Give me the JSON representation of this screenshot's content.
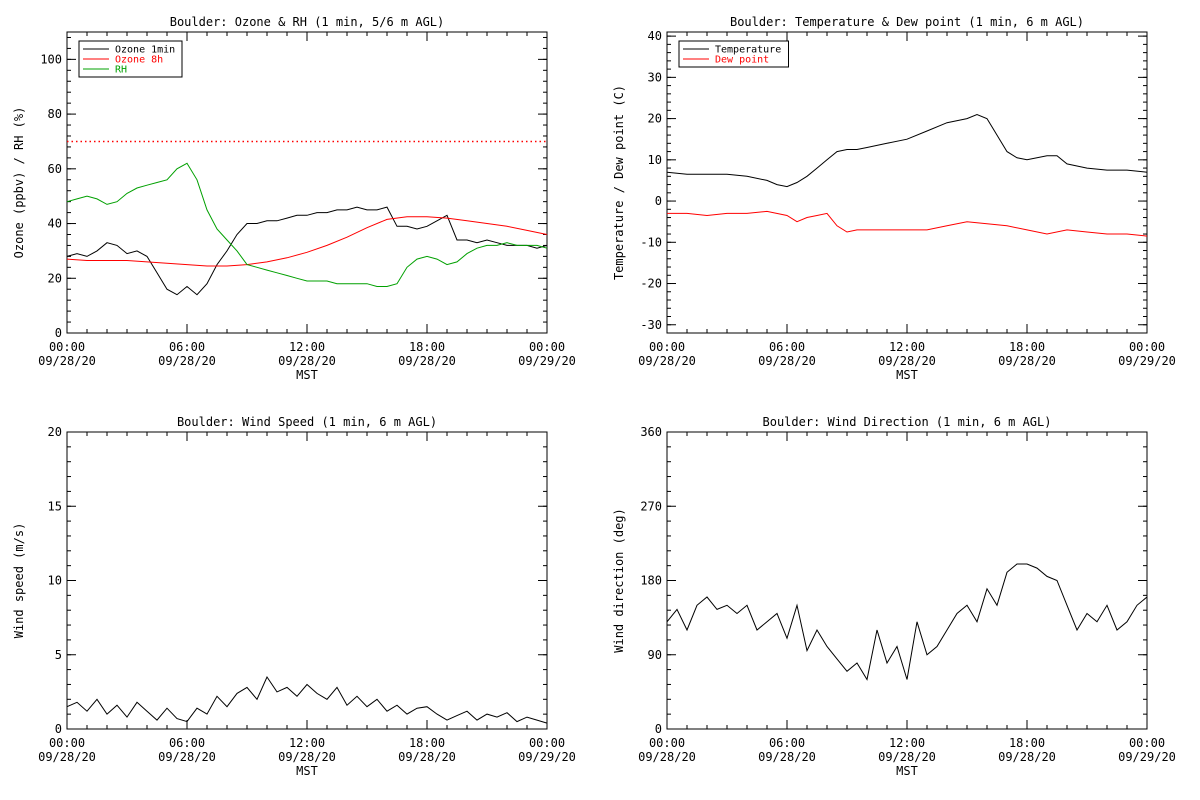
{
  "x_axis": {
    "xlabel": "MST",
    "tick_times": [
      "00:00",
      "06:00",
      "12:00",
      "18:00",
      "00:00"
    ],
    "tick_dates": [
      "09/28/20",
      "09/28/20",
      "09/28/20",
      "09/28/20",
      "09/29/20"
    ],
    "hours": [
      0,
      6,
      12,
      18,
      24
    ]
  },
  "chart_data": [
    {
      "type": "line",
      "title": "Boulder: Ozone & RH (1 min, 5/6 m AGL)",
      "ylabel": "Ozone (ppbv) / RH (%)",
      "xlabel": "MST",
      "xlim": [
        0,
        24
      ],
      "ylim": [
        0,
        110
      ],
      "yticks": [
        0,
        20,
        40,
        60,
        80,
        100
      ],
      "legend_position": "top-left",
      "reference_line": {
        "y": 70,
        "color": "#ff0000",
        "style": "dotted"
      },
      "series": [
        {
          "name": "Ozone 1min",
          "color": "#000000",
          "x": [
            0,
            0.5,
            1,
            1.5,
            2,
            2.5,
            3,
            3.5,
            4,
            4.5,
            5,
            5.5,
            6,
            6.5,
            7,
            7.5,
            8,
            8.5,
            9,
            9.5,
            10,
            10.5,
            11,
            11.5,
            12,
            12.5,
            13,
            13.5,
            14,
            14.5,
            15,
            15.5,
            16,
            16.5,
            17,
            17.5,
            18,
            18.5,
            19,
            19.5,
            20,
            20.5,
            21,
            21.5,
            22,
            22.5,
            23,
            23.5,
            24
          ],
          "y": [
            28,
            29,
            28,
            30,
            33,
            32,
            29,
            30,
            28,
            22,
            16,
            14,
            17,
            14,
            18,
            25,
            30,
            36,
            40,
            40,
            41,
            41,
            42,
            43,
            43,
            44,
            44,
            45,
            45,
            46,
            45,
            45,
            46,
            39,
            39,
            38,
            39,
            41,
            43,
            34,
            34,
            33,
            34,
            33,
            32,
            32,
            32,
            31,
            32
          ]
        },
        {
          "name": "Ozone 8h",
          "color": "#ff0000",
          "x": [
            0,
            1,
            2,
            3,
            4,
            5,
            6,
            7,
            8,
            9,
            10,
            11,
            12,
            13,
            14,
            15,
            16,
            17,
            18,
            19,
            20,
            21,
            22,
            23,
            24
          ],
          "y": [
            27,
            26.5,
            26.5,
            26.5,
            26,
            25.5,
            25,
            24.5,
            24.5,
            25,
            26,
            27.5,
            29.5,
            32,
            35,
            38.5,
            41.5,
            42.5,
            42.5,
            42,
            41,
            40,
            39,
            37.5,
            36
          ]
        },
        {
          "name": "RH",
          "color": "#00a000",
          "x": [
            0,
            0.5,
            1,
            1.5,
            2,
            2.5,
            3,
            3.5,
            4,
            4.5,
            5,
            5.5,
            6,
            6.5,
            7,
            7.5,
            8,
            8.5,
            9,
            9.5,
            10,
            10.5,
            11,
            11.5,
            12,
            12.5,
            13,
            13.5,
            14,
            14.5,
            15,
            15.5,
            16,
            16.5,
            17,
            17.5,
            18,
            18.5,
            19,
            19.5,
            20,
            20.5,
            21,
            21.5,
            22,
            22.5,
            23,
            23.5,
            24
          ],
          "y": [
            48,
            49,
            50,
            49,
            47,
            48,
            51,
            53,
            54,
            55,
            56,
            60,
            62,
            56,
            45,
            38,
            34,
            30,
            25,
            24,
            23,
            22,
            21,
            20,
            19,
            19,
            19,
            18,
            18,
            18,
            18,
            17,
            17,
            18,
            24,
            27,
            28,
            27,
            25,
            26,
            29,
            31,
            32,
            32,
            33,
            32,
            32,
            32,
            31
          ]
        }
      ]
    },
    {
      "type": "line",
      "title": "Boulder: Temperature & Dew point (1 min, 6 m AGL)",
      "ylabel": "Temperature / Dew point (C)",
      "xlabel": "MST",
      "xlim": [
        0,
        24
      ],
      "ylim": [
        -32,
        41
      ],
      "yticks": [
        -30,
        -20,
        -10,
        0,
        10,
        20,
        30,
        40
      ],
      "legend_position": "top-left",
      "series": [
        {
          "name": "Temperature",
          "color": "#000000",
          "x": [
            0,
            1,
            2,
            3,
            4,
            5,
            5.5,
            6,
            6.5,
            7,
            7.5,
            8,
            8.5,
            9,
            9.5,
            10,
            11,
            12,
            13,
            14,
            15,
            15.5,
            16,
            16.5,
            17,
            17.5,
            18,
            18.5,
            19,
            19.5,
            20,
            21,
            22,
            23,
            24
          ],
          "y": [
            7,
            6.5,
            6.5,
            6.5,
            6,
            5,
            4,
            3.5,
            4.5,
            6,
            8,
            10,
            12,
            12.5,
            12.5,
            13,
            14,
            15,
            17,
            19,
            20,
            21,
            20,
            16,
            12,
            10.5,
            10,
            10.5,
            11,
            11,
            9,
            8,
            7.5,
            7.5,
            7
          ]
        },
        {
          "name": "Dew point",
          "color": "#ff0000",
          "x": [
            0,
            1,
            2,
            3,
            4,
            5,
            6,
            6.5,
            7,
            7.5,
            8,
            8.5,
            9,
            9.5,
            10,
            11,
            12,
            13,
            14,
            15,
            16,
            17,
            18,
            19,
            20,
            21,
            22,
            23,
            24
          ],
          "y": [
            -3,
            -3,
            -3.5,
            -3,
            -3,
            -2.5,
            -3.5,
            -5,
            -4,
            -3.5,
            -3,
            -6,
            -7.5,
            -7,
            -7,
            -7,
            -7,
            -7,
            -6,
            -5,
            -5.5,
            -6,
            -7,
            -8,
            -7,
            -7.5,
            -8,
            -8,
            -8.5
          ]
        }
      ]
    },
    {
      "type": "line",
      "title": "Boulder: Wind Speed (1 min, 6 m AGL)",
      "ylabel": "Wind speed (m/s)",
      "xlabel": "MST",
      "xlim": [
        0,
        24
      ],
      "ylim": [
        0,
        20
      ],
      "yticks": [
        0,
        5,
        10,
        15,
        20
      ],
      "series": [
        {
          "color": "#000000",
          "x": [
            0,
            0.5,
            1,
            1.5,
            2,
            2.5,
            3,
            3.5,
            4,
            4.5,
            5,
            5.5,
            6,
            6.5,
            7,
            7.5,
            8,
            8.5,
            9,
            9.5,
            10,
            10.5,
            11,
            11.5,
            12,
            12.5,
            13,
            13.5,
            14,
            14.5,
            15,
            15.5,
            16,
            16.5,
            17,
            17.5,
            18,
            18.5,
            19,
            19.5,
            20,
            20.5,
            21,
            21.5,
            22,
            22.5,
            23,
            23.5,
            24
          ],
          "y": [
            1.5,
            1.8,
            1.2,
            2.0,
            1.0,
            1.6,
            0.8,
            1.8,
            1.2,
            0.6,
            1.4,
            0.7,
            0.5,
            1.4,
            1.0,
            2.2,
            1.5,
            2.4,
            2.8,
            2.0,
            3.5,
            2.5,
            2.8,
            2.2,
            3.0,
            2.4,
            2.0,
            2.8,
            1.6,
            2.2,
            1.5,
            2.0,
            1.2,
            1.6,
            1.0,
            1.4,
            1.5,
            1.0,
            0.6,
            0.9,
            1.2,
            0.6,
            1.0,
            0.8,
            1.1,
            0.5,
            0.8,
            0.6,
            0.4
          ]
        }
      ]
    },
    {
      "type": "line",
      "title": "Boulder: Wind Direction (1 min, 6 m AGL)",
      "ylabel": "Wind direction (deg)",
      "xlabel": "MST",
      "xlim": [
        0,
        24
      ],
      "ylim": [
        0,
        360
      ],
      "yticks": [
        0,
        90,
        180,
        270,
        360
      ],
      "series": [
        {
          "color": "#000000",
          "x": [
            0,
            0.5,
            1,
            1.5,
            2,
            2.5,
            3,
            3.5,
            4,
            4.5,
            5,
            5.5,
            6,
            6.5,
            7,
            7.5,
            8,
            8.5,
            9,
            9.5,
            10,
            10.5,
            11,
            11.5,
            12,
            12.5,
            13,
            13.5,
            14,
            14.5,
            15,
            15.5,
            16,
            16.5,
            17,
            17.5,
            18,
            18.5,
            19,
            19.5,
            20,
            20.5,
            21,
            21.5,
            22,
            22.5,
            23,
            23.5,
            24
          ],
          "y": [
            130,
            145,
            120,
            150,
            160,
            145,
            150,
            140,
            150,
            120,
            130,
            140,
            110,
            150,
            95,
            120,
            100,
            85,
            70,
            80,
            60,
            120,
            80,
            100,
            60,
            130,
            90,
            100,
            120,
            140,
            150,
            130,
            170,
            150,
            190,
            200,
            200,
            195,
            185,
            180,
            150,
            120,
            140,
            130,
            150,
            120,
            130,
            150,
            160
          ]
        }
      ]
    }
  ]
}
